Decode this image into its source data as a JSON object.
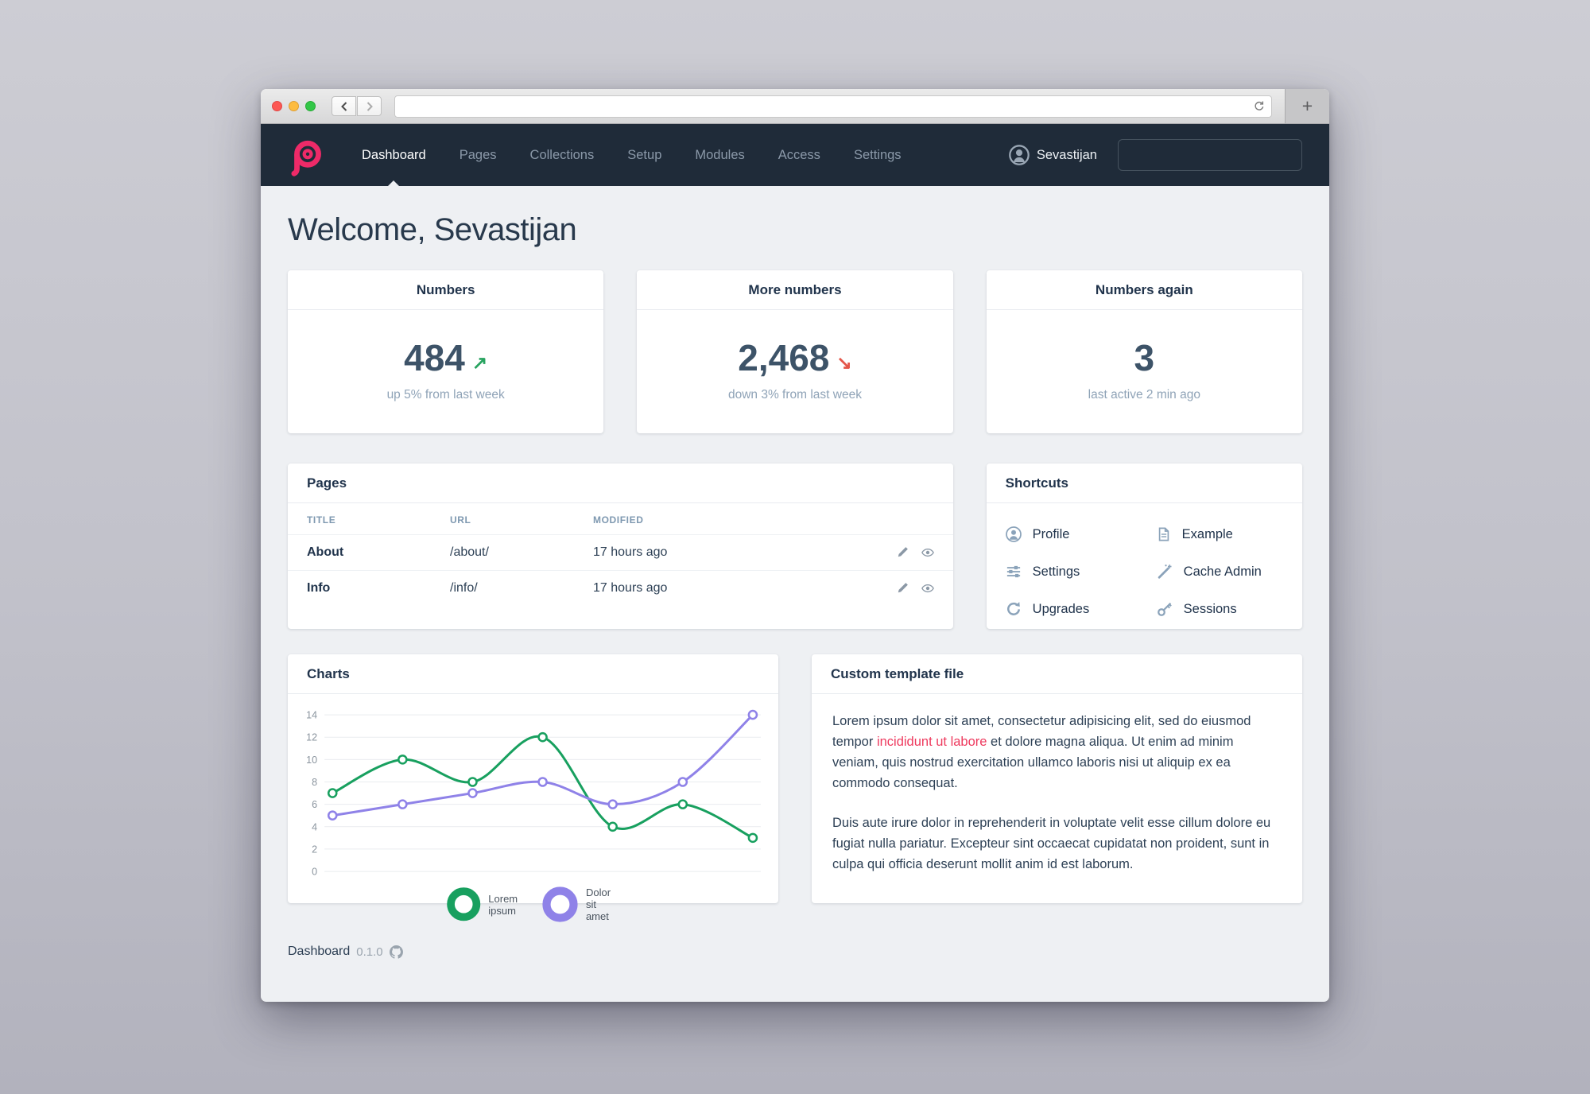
{
  "browser": {
    "url_value": "",
    "new_tab_label": "+"
  },
  "navbar": {
    "items": [
      {
        "label": "Dashboard",
        "active": true
      },
      {
        "label": "Pages",
        "active": false
      },
      {
        "label": "Collections",
        "active": false
      },
      {
        "label": "Setup",
        "active": false
      },
      {
        "label": "Modules",
        "active": false
      },
      {
        "label": "Access",
        "active": false
      },
      {
        "label": "Settings",
        "active": false
      }
    ],
    "user": "Sevastijan",
    "search_value": ""
  },
  "page": {
    "heading": "Welcome, Sevastijan"
  },
  "stat_cards": [
    {
      "title": "Numbers",
      "value": "484",
      "arrow": "↗",
      "trend": "up",
      "subtitle": "up 5% from last week"
    },
    {
      "title": "More numbers",
      "value": "2,468",
      "arrow": "↘",
      "trend": "down",
      "subtitle": "down 3% from last week"
    },
    {
      "title": "Numbers again",
      "value": "3",
      "arrow": "",
      "trend": "none",
      "subtitle": "last active 2 min ago"
    }
  ],
  "pages_panel": {
    "title": "Pages",
    "columns": [
      "TITLE",
      "URL",
      "MODIFIED"
    ],
    "rows": [
      {
        "title": "About",
        "url": "/about/",
        "modified": "17 hours ago"
      },
      {
        "title": "Info",
        "url": "/info/",
        "modified": "17 hours ago"
      }
    ]
  },
  "shortcuts": {
    "title": "Shortcuts",
    "items": [
      {
        "label": "Profile",
        "icon": "user-icon"
      },
      {
        "label": "Example",
        "icon": "document-icon"
      },
      {
        "label": "Settings",
        "icon": "sliders-icon"
      },
      {
        "label": "Cache Admin",
        "icon": "wand-icon"
      },
      {
        "label": "Upgrades",
        "icon": "refresh-icon"
      },
      {
        "label": "Sessions",
        "icon": "key-icon"
      }
    ]
  },
  "charts_panel": {
    "title": "Charts"
  },
  "chart_data": {
    "type": "line",
    "x": [
      1,
      2,
      3,
      4,
      5,
      6,
      7
    ],
    "series": [
      {
        "name": "Lorem ipsum",
        "color": "#18a05f",
        "values": [
          7,
          10,
          8,
          12,
          4,
          6,
          3
        ]
      },
      {
        "name": "Dolor sit amet",
        "color": "#8f82e8",
        "values": [
          5,
          6,
          7,
          8,
          6,
          8,
          14
        ]
      }
    ],
    "title": "Charts",
    "xlabel": "",
    "ylabel": "",
    "ylim": [
      0,
      14
    ],
    "ytick_step": 2,
    "grid": true,
    "smooth": true,
    "marker": "open-circle",
    "legend_position": "bottom"
  },
  "template_panel": {
    "title": "Custom template file",
    "p1_before": "Lorem ipsum dolor sit amet, consectetur adipisicing elit, sed do eiusmod tempor ",
    "p1_link": "incididunt ut labore",
    "p1_after": " et dolore magna aliqua. Ut enim ad minim veniam, quis nostrud exercitation ullamco laboris nisi ut aliquip ex ea commodo consequat.",
    "p2": "Duis aute irure dolor in reprehenderit in voluptate velit esse cillum dolore eu fugiat nulla pariatur. Excepteur sint occaecat cupidatat non proident, sunt in culpa qui officia deserunt mollit anim id est laborum."
  },
  "footer": {
    "name": "Dashboard",
    "version": "0.1.0"
  },
  "colors": {
    "navbar_bg": "#1f2b39",
    "content_bg": "#eef0f3",
    "brand_pink": "#ee2a68",
    "accent_green": "#27a35f",
    "accent_red": "#e4564a",
    "link_red": "#ee3a5e",
    "chart_green": "#18a05f",
    "chart_purple": "#8f82e8",
    "heading": "#28394c",
    "muted_blue": "#8fa3b7"
  }
}
